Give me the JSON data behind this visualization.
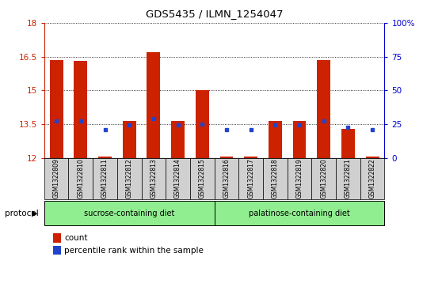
{
  "title": "GDS5435 / ILMN_1254047",
  "samples": [
    "GSM1322809",
    "GSM1322810",
    "GSM1322811",
    "GSM1322812",
    "GSM1322813",
    "GSM1322814",
    "GSM1322815",
    "GSM1322816",
    "GSM1322817",
    "GSM1322818",
    "GSM1322819",
    "GSM1322820",
    "GSM1322821",
    "GSM1322822"
  ],
  "red_values": [
    16.35,
    16.32,
    12.05,
    13.65,
    16.7,
    13.65,
    15.0,
    12.05,
    12.05,
    13.65,
    13.65,
    16.35,
    13.3,
    12.05
  ],
  "blue_values": [
    13.65,
    13.65,
    13.25,
    13.45,
    13.75,
    13.45,
    13.5,
    13.25,
    13.25,
    13.45,
    13.45,
    13.65,
    13.35,
    13.25
  ],
  "ylim_left": [
    12,
    18
  ],
  "ylim_right": [
    0,
    100
  ],
  "yticks_left": [
    12,
    13.5,
    15,
    16.5,
    18
  ],
  "yticks_right": [
    0,
    25,
    50,
    75,
    100
  ],
  "bar_color": "#cc2200",
  "dot_color": "#2244cc",
  "group1_label": "sucrose-containing diet",
  "group1_count": 7,
  "group2_label": "palatinose-containing diet",
  "group2_count": 7,
  "group_color": "#90ee90",
  "protocol_label": "protocol",
  "legend_count_label": "count",
  "legend_pct_label": "percentile rank within the sample",
  "bar_width": 0.55,
  "base_value": 12.0,
  "left_axis_color": "#cc2200",
  "right_axis_color": "#0000cc",
  "grid_color": "black",
  "sample_box_color": "#d0d0d0"
}
